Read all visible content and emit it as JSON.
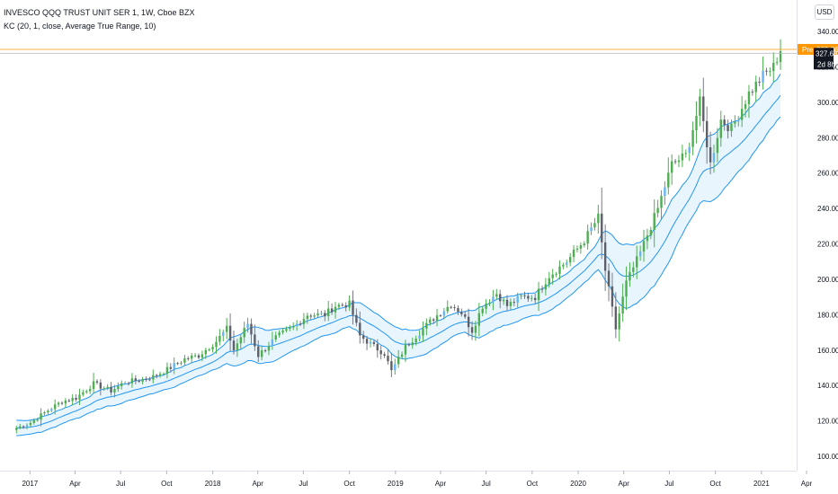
{
  "header": {
    "symbol_line": "INVESCO QQQ TRUST UNIT SER 1, 1W, Cboe BZX",
    "indicator_line": "KC (20, 1, close, Average True Range, 10)",
    "currency": "USD"
  },
  "price_tags": {
    "pre_label": "Pre",
    "pre_value": "329.86",
    "last_value": "327.68",
    "countdown": "2d 8h"
  },
  "colors": {
    "up": "#26a69a",
    "up_fill": "#4caf50",
    "down": "#787b86",
    "down_fill": "#5d6068",
    "wick_up": "#4caf50",
    "candle_alt": "#64b5f6",
    "keltner_line": "#2196f3",
    "keltner_fill": "#e3f2fd",
    "pre_tag": "#ff9800",
    "last_tag": "#131722"
  },
  "chart_data": {
    "type": "candlestick",
    "title": "INVESCO QQQ TRUST UNIT SER 1, 1W, Cboe BZX",
    "x_axis_labels": [
      "2017",
      "Apr",
      "Jul",
      "Oct",
      "2018",
      "Apr",
      "Jul",
      "Oct",
      "2019",
      "Apr",
      "Jul",
      "Oct",
      "2020",
      "Apr",
      "Jul",
      "Oct",
      "2021",
      "Apr"
    ],
    "y_ticks": [
      100,
      120,
      140,
      160,
      180,
      200,
      220,
      240,
      260,
      280,
      300,
      320,
      340
    ],
    "y_tick_labels": [
      "100.00",
      "120.00",
      "140.00",
      "160.00",
      "180.00",
      "200.00",
      "220.00",
      "240.00",
      "260.00",
      "280.00",
      "300.00",
      "320.00",
      "340.00"
    ],
    "ylim": [
      95,
      345
    ],
    "x_range": [
      "2016-12-01",
      "2021-04-20"
    ],
    "close_points": [
      [
        "2016-12-05",
        116
      ],
      [
        "2017-01-02",
        119
      ],
      [
        "2017-02-06",
        126
      ],
      [
        "2017-03-06",
        131
      ],
      [
        "2017-04-03",
        133
      ],
      [
        "2017-05-08",
        141
      ],
      [
        "2017-06-12",
        137
      ],
      [
        "2017-07-10",
        142
      ],
      [
        "2017-08-07",
        143
      ],
      [
        "2017-09-04",
        145
      ],
      [
        "2017-10-02",
        149
      ],
      [
        "2017-11-06",
        155
      ],
      [
        "2017-12-04",
        157
      ],
      [
        "2018-01-08",
        165
      ],
      [
        "2018-01-29",
        172
      ],
      [
        "2018-02-12",
        160
      ],
      [
        "2018-03-12",
        175
      ],
      [
        "2018-04-02",
        157
      ],
      [
        "2018-05-07",
        167
      ],
      [
        "2018-06-11",
        173
      ],
      [
        "2018-07-09",
        180
      ],
      [
        "2018-08-13",
        180
      ],
      [
        "2018-09-03",
        185
      ],
      [
        "2018-10-01",
        186
      ],
      [
        "2018-10-22",
        168
      ],
      [
        "2018-11-19",
        162
      ],
      [
        "2018-12-10",
        158
      ],
      [
        "2018-12-24",
        148
      ],
      [
        "2019-01-21",
        162
      ],
      [
        "2019-02-18",
        170
      ],
      [
        "2019-03-18",
        178
      ],
      [
        "2019-04-22",
        186
      ],
      [
        "2019-05-13",
        181
      ],
      [
        "2019-06-03",
        171
      ],
      [
        "2019-06-24",
        185
      ],
      [
        "2019-07-22",
        192
      ],
      [
        "2019-08-12",
        185
      ],
      [
        "2019-09-09",
        190
      ],
      [
        "2019-10-07",
        190
      ],
      [
        "2019-11-04",
        202
      ],
      [
        "2019-12-09",
        210
      ],
      [
        "2020-01-13",
        222
      ],
      [
        "2020-02-10",
        235
      ],
      [
        "2020-02-24",
        205
      ],
      [
        "2020-03-16",
        172
      ],
      [
        "2020-04-06",
        198
      ],
      [
        "2020-05-04",
        215
      ],
      [
        "2020-06-08",
        240
      ],
      [
        "2020-07-06",
        265
      ],
      [
        "2020-08-03",
        270
      ],
      [
        "2020-08-31",
        300
      ],
      [
        "2020-09-21",
        265
      ],
      [
        "2020-10-12",
        290
      ],
      [
        "2020-11-02",
        285
      ],
      [
        "2020-12-07",
        305
      ],
      [
        "2021-01-04",
        315
      ],
      [
        "2021-01-25",
        320
      ],
      [
        "2021-02-08",
        330
      ]
    ],
    "keltner_channel": {
      "length": 20,
      "multiplier": 1,
      "source": "close",
      "bands_style": "Average True Range",
      "atr_length": 10
    },
    "last_price": 327.68,
    "pre_market_price": 329.86,
    "grid": false
  }
}
